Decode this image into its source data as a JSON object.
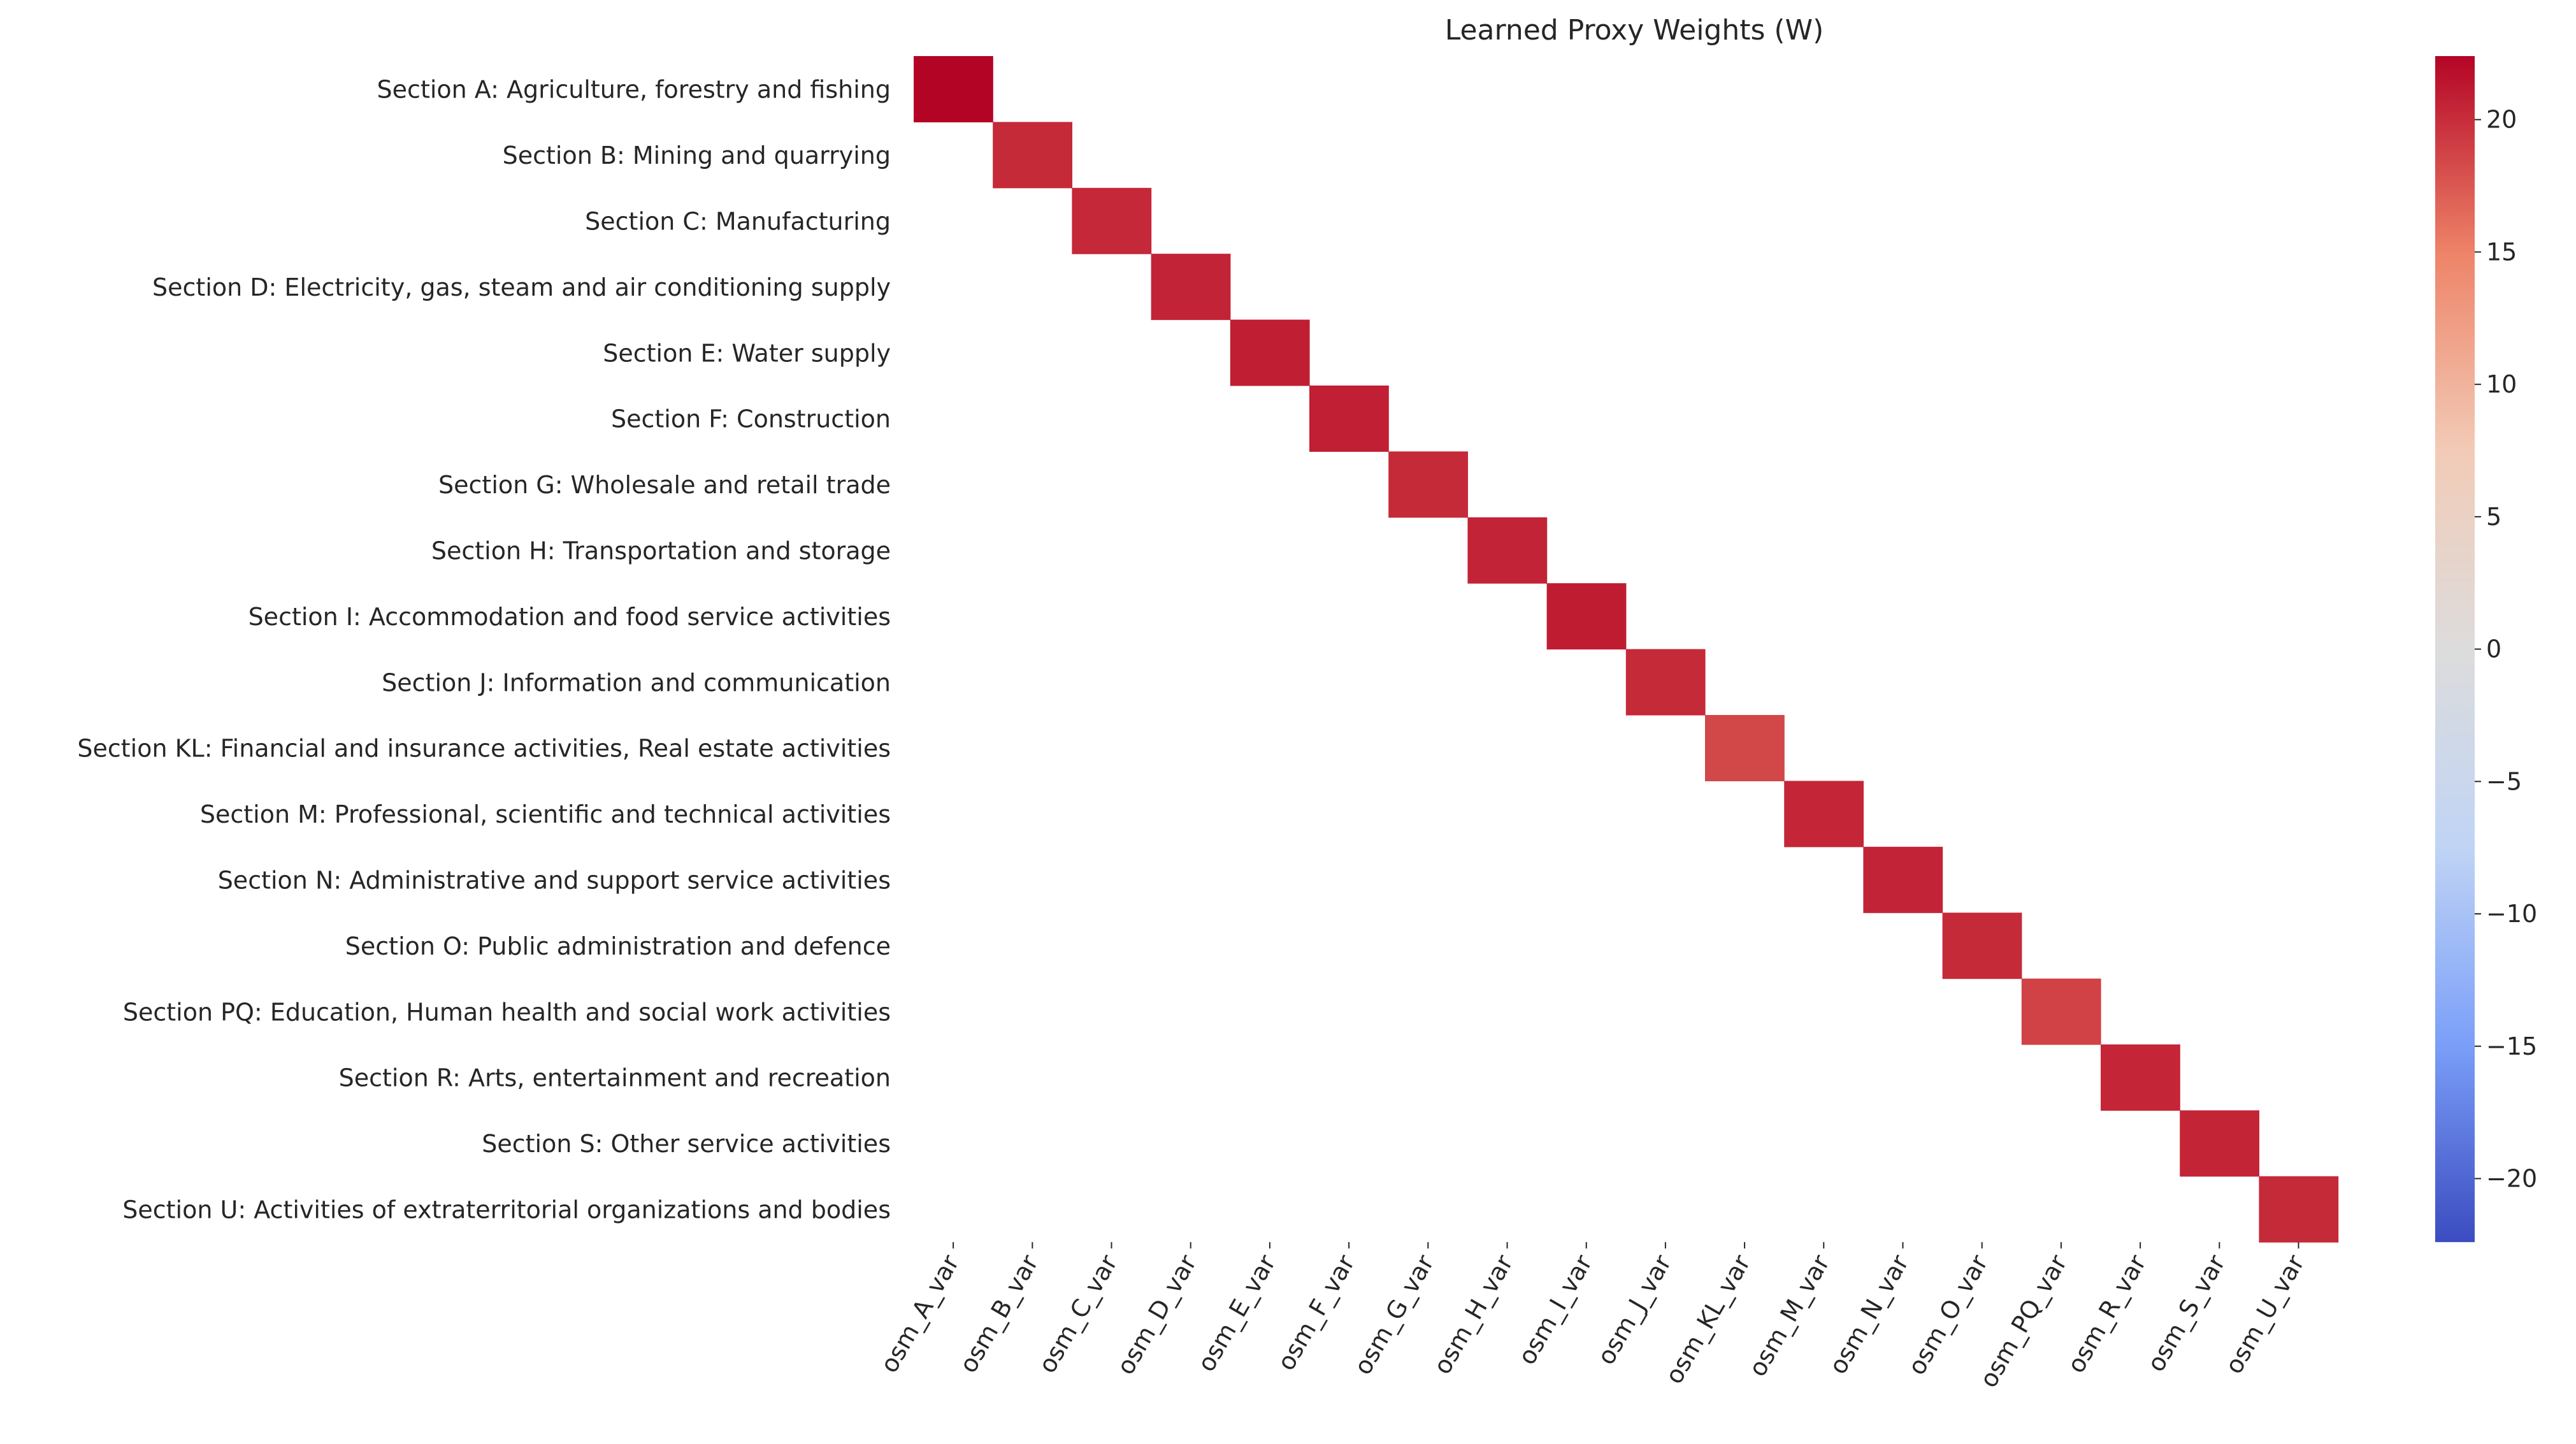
{
  "chart_data": {
    "type": "heatmap",
    "title": "Learned Proxy Weights (W)",
    "xlabel": "",
    "ylabel": "",
    "colormap": "coolwarm",
    "cmap_stops": [
      "#3b4cc0",
      "#7b9ff9",
      "#c0d4f5",
      "#dddcdc",
      "#f2cbb7",
      "#ee8468",
      "#b40426"
    ],
    "vmin": -22.4,
    "vmax": 22.4,
    "colorbar_ticks": [
      "20",
      "15",
      "10",
      "5",
      "0",
      "−5",
      "−10",
      "−15",
      "−20"
    ],
    "colorbar_tick_values": [
      20,
      15,
      10,
      5,
      0,
      -5,
      -10,
      -15,
      -20
    ],
    "rows": [
      "Section A: Agriculture, forestry and fishing",
      "Section B: Mining and quarrying",
      "Section C: Manufacturing",
      "Section D: Electricity, gas, steam and air conditioning supply",
      "Section E: Water supply",
      "Section F: Construction",
      "Section G: Wholesale and retail trade",
      "Section H: Transportation and storage",
      "Section I: Accommodation and food service activities",
      "Section J: Information and communication",
      "Section KL: Financial and insurance activities, Real estate activities",
      "Section M: Professional, scientific and technical activities",
      "Section N: Administrative and support service activities",
      "Section O: Public administration and defence",
      "Section PQ: Education, Human health and social work activities",
      "Section R: Arts, entertainment and recreation",
      "Section S: Other service activities",
      "Section U: Activities of extraterritorial organizations and bodies"
    ],
    "columns": [
      "osm_A_var",
      "osm_B_var",
      "osm_C_var",
      "osm_D_var",
      "osm_E_var",
      "osm_F_var",
      "osm_G_var",
      "osm_H_var",
      "osm_I_var",
      "osm_J_var",
      "osm_KL_var",
      "osm_M_var",
      "osm_N_var",
      "osm_O_var",
      "osm_PQ_var",
      "osm_R_var",
      "osm_S_var",
      "osm_U_var"
    ],
    "diagonal_values": [
      22.4,
      20.2,
      20.3,
      20.6,
      20.9,
      20.8,
      20.2,
      20.6,
      21.0,
      20.2,
      18.5,
      20.4,
      20.6,
      20.2,
      18.8,
      20.4,
      20.5,
      20.2
    ],
    "off_diagonal": "blank"
  }
}
